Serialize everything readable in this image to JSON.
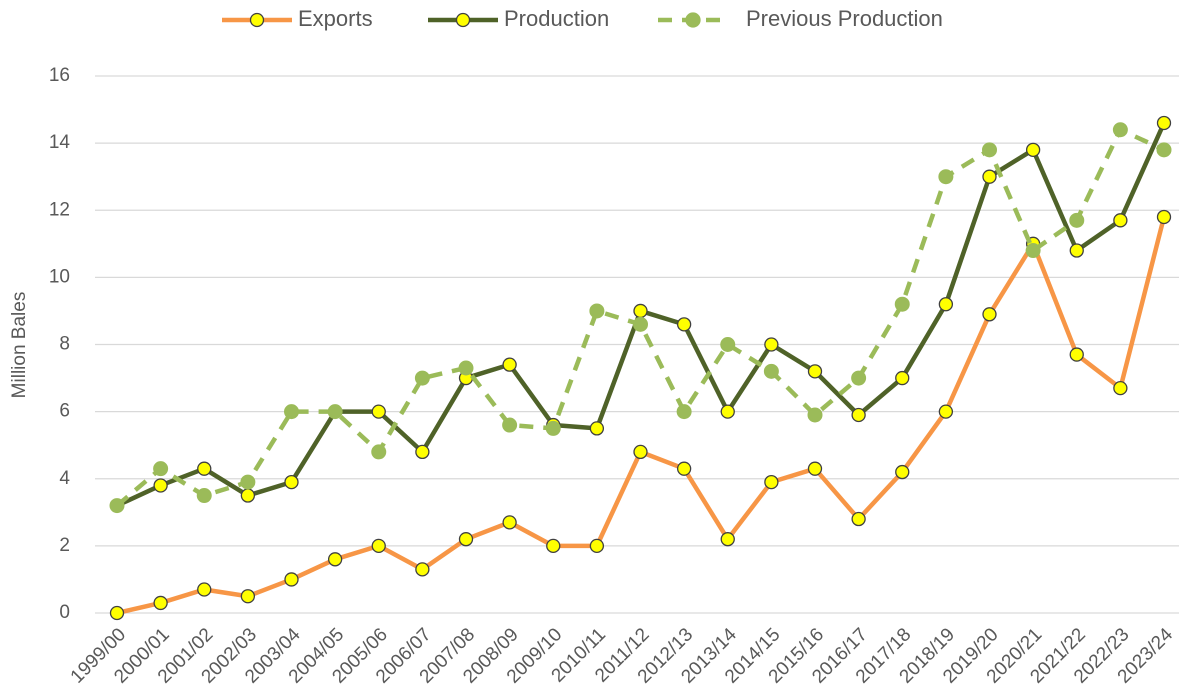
{
  "chart_data": {
    "type": "line",
    "y_label": "Million Bales",
    "categories": [
      "1999/00",
      "2000/01",
      "2001/02",
      "2002/03",
      "2003/04",
      "2004/05",
      "2005/06",
      "2006/07",
      "2007/08",
      "2008/09",
      "2009/10",
      "2010/11",
      "2011/12",
      "2012/13",
      "2013/14",
      "2014/15",
      "2015/16",
      "2016/17",
      "2017/18",
      "2018/19",
      "2019/20",
      "2020/21",
      "2021/22",
      "2022/23",
      "2023/24"
    ],
    "series": [
      {
        "name": "Exports",
        "color": "#f79646",
        "marker_color": "#ffff00",
        "dashed": false,
        "values": [
          0,
          0.3,
          0.7,
          0.5,
          1.0,
          1.6,
          2.0,
          1.3,
          2.2,
          2.7,
          2.0,
          2.0,
          4.8,
          4.3,
          2.2,
          3.9,
          4.3,
          2.8,
          4.2,
          6.0,
          8.9,
          11.0,
          7.7,
          6.7,
          11.8
        ]
      },
      {
        "name": "Production",
        "color": "#4f6228",
        "marker_color": "#ffff00",
        "dashed": false,
        "values": [
          3.2,
          3.8,
          4.3,
          3.5,
          3.9,
          6.0,
          6.0,
          4.8,
          7.0,
          7.4,
          5.6,
          5.5,
          9.0,
          8.6,
          6.0,
          8.0,
          7.2,
          5.9,
          7.0,
          9.2,
          13.0,
          13.8,
          10.8,
          11.7,
          14.6
        ]
      },
      {
        "name": "Previous Production",
        "color": "#9bbb59",
        "marker_color": "#9bbb59",
        "dashed": true,
        "values": [
          3.2,
          4.3,
          3.5,
          3.9,
          6.0,
          6.0,
          4.8,
          7.0,
          7.3,
          5.6,
          5.5,
          9.0,
          8.6,
          6.0,
          8.0,
          7.2,
          5.9,
          7.0,
          9.2,
          13.0,
          13.8,
          10.8,
          11.7,
          14.4,
          13.8
        ]
      }
    ],
    "ylim": [
      0,
      16
    ],
    "yticks": [
      0,
      2,
      4,
      6,
      8,
      10,
      12,
      14,
      16
    ],
    "grid": true,
    "legend": "top"
  }
}
